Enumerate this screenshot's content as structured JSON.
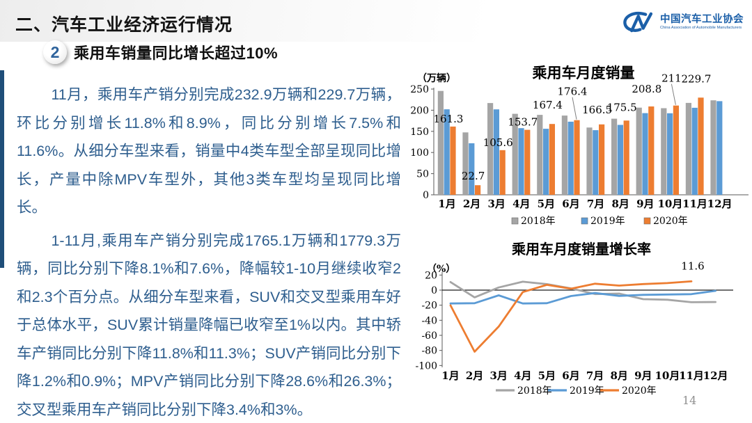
{
  "slide": {
    "title": "二、汽车工业经济运行情况",
    "section_number": "2",
    "section_title": "乘用车销量同比增长超过10%",
    "paragraphs": [
      "11月，乘用车产销分别完成232.9万辆和229.7万辆，环比分别增长11.8%和8.9%，同比分别增长7.5%和11.6%。从细分车型来看，销量中4类车型全部呈现同比增长，产量中除MPV车型外，其他3类车型均呈现同比增长。",
      "1-11月,乘用车产销分别完成1765.1万辆和1779.3万辆，同比分别下降8.1%和7.6%，降幅较1-10月继续收窄2和2.3个百分点。从细分车型来看，SUV和交叉型乘用车好于总体水平，SUV累计销量降幅已收窄至1%以内。其中轿车产销同比分别下降11.8%和11.3%；SUV产销同比分别下降1.2%和0.9%；MPV产销同比分别下降28.6%和26.3%；交叉型乘用车产销同比分别下降3.4%和3%。"
    ],
    "page_number": "14"
  },
  "logo": {
    "name_cn": "中国汽车工业协会",
    "name_en": "China Association of Automobile Manufacturers"
  },
  "colors": {
    "accent_blue": "#1F4E79",
    "body_text": "#2E5E8E",
    "series_2018": "#A5A5A5",
    "series_2019": "#5B9BD5",
    "series_2020": "#ED7D31"
  },
  "chart_data": [
    {
      "type": "bar",
      "title": "乘用车月度销量",
      "unit": "（万辆）",
      "categories": [
        "1月",
        "2月",
        "3月",
        "4月",
        "5月",
        "6月",
        "7月",
        "8月",
        "9月",
        "10月",
        "11月",
        "12月"
      ],
      "series": [
        {
          "name": "2018年",
          "color": "#A5A5A5",
          "values": [
            245.6,
            147.6,
            216.9,
            191.4,
            188.9,
            187.4,
            159.0,
            179.9,
            206.1,
            204.7,
            217.3,
            223.3
          ]
        },
        {
          "name": "2019年",
          "color": "#5B9BD5",
          "values": [
            202.1,
            121.9,
            201.9,
            157.5,
            156.1,
            172.8,
            152.8,
            165.3,
            193.1,
            192.8,
            205.7,
            221.3
          ]
        },
        {
          "name": "2020年",
          "color": "#ED7D31",
          "values": [
            161.3,
            22.7,
            105.6,
            153.7,
            167.4,
            176.4,
            166.5,
            175.5,
            208.8,
            211,
            229.7,
            null
          ],
          "labels": [
            "161.3",
            "22.7",
            "105.6",
            "153.7",
            "167.4",
            "176.4",
            "166.5",
            "175.5",
            "208.8",
            "211",
            "229.7",
            ""
          ]
        }
      ],
      "ylim": [
        0,
        250
      ],
      "yticks": [
        0,
        50,
        100,
        150,
        200,
        250
      ],
      "legend_position": "bottom",
      "grid": false
    },
    {
      "type": "line",
      "title": "乘用车月度销量增长率",
      "unit": "（%）",
      "categories": [
        "1月",
        "2月",
        "3月",
        "4月",
        "5月",
        "6月",
        "7月",
        "8月",
        "9月",
        "10月",
        "11月",
        "12月"
      ],
      "series": [
        {
          "name": "2018年",
          "color": "#A5A5A5",
          "values": [
            10.7,
            -9.6,
            3.5,
            11.2,
            7.9,
            2.3,
            -5.3,
            -4.6,
            -12.0,
            -12.7,
            -16.1,
            -15.8
          ]
        },
        {
          "name": "2019年",
          "color": "#5B9BD5",
          "values": [
            -17.7,
            -17.4,
            -6.9,
            -17.7,
            -17.4,
            -7.8,
            -3.9,
            -7.7,
            -6.3,
            -5.8,
            -5.4,
            -0.9
          ]
        },
        {
          "name": "2020年",
          "color": "#ED7D31",
          "values": [
            -20.2,
            -81.7,
            -48.4,
            -2.6,
            7.0,
            1.8,
            8.5,
            6.0,
            8.0,
            9.3,
            11.6,
            null
          ]
        }
      ],
      "ylim": [
        -100,
        20
      ],
      "yticks": [
        20,
        0,
        -20,
        -40,
        -60,
        -80,
        -100
      ],
      "annotation": {
        "text": "11.6",
        "month_index": 10
      },
      "legend_position": "bottom",
      "grid": false
    }
  ]
}
